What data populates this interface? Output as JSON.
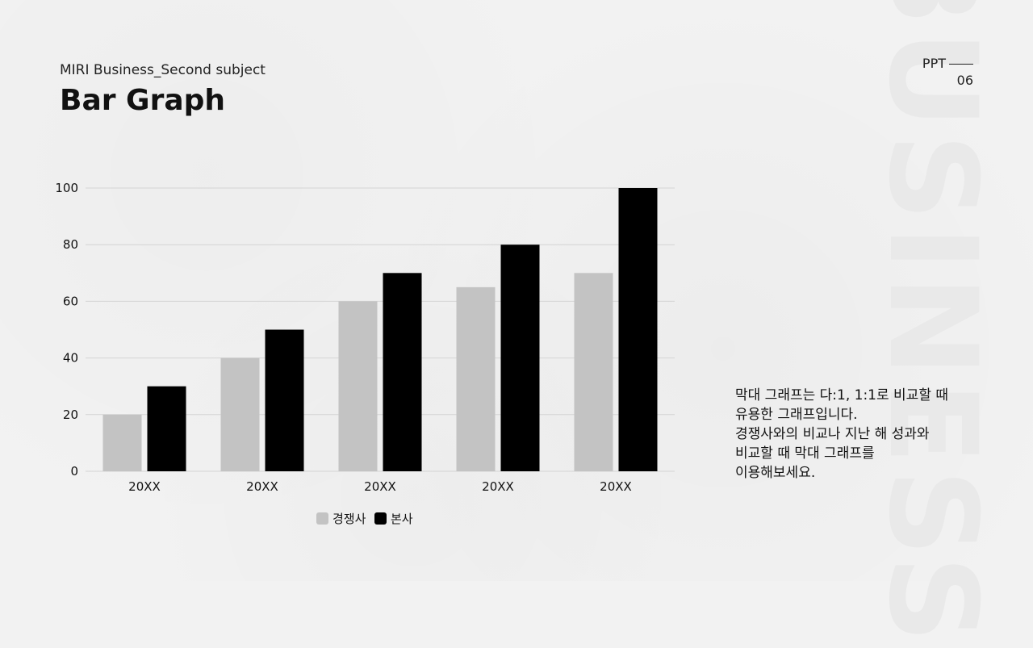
{
  "header": {
    "subtitle": "MIRI Business_Second subject",
    "title": "Bar Graph",
    "page_prefix": "PPT",
    "page_number": "06"
  },
  "watermark": "BUSINESS",
  "description": {
    "lines": [
      "막대 그래프는 다:1, 1:1로 비교할 때",
      "유용한 그래프입니다.",
      "경쟁사와의 비교나 지난 해 성과와",
      "비교할 때 막대 그래프를",
      "이용해보세요."
    ]
  },
  "colors": {
    "series_competitor": "#c3c3c3",
    "series_company": "#000000",
    "grid": "#d4d4d4"
  },
  "chart_data": {
    "type": "bar",
    "categories": [
      "20XX",
      "20XX",
      "20XX",
      "20XX",
      "20XX"
    ],
    "series": [
      {
        "name": "경쟁사",
        "values": [
          20,
          40,
          60,
          65,
          70
        ]
      },
      {
        "name": "본사",
        "values": [
          30,
          50,
          70,
          80,
          100
        ]
      }
    ],
    "ylim": [
      0,
      100
    ],
    "yticks": [
      0,
      20,
      40,
      60,
      80,
      100
    ],
    "grid": true,
    "legend": "bottom"
  }
}
